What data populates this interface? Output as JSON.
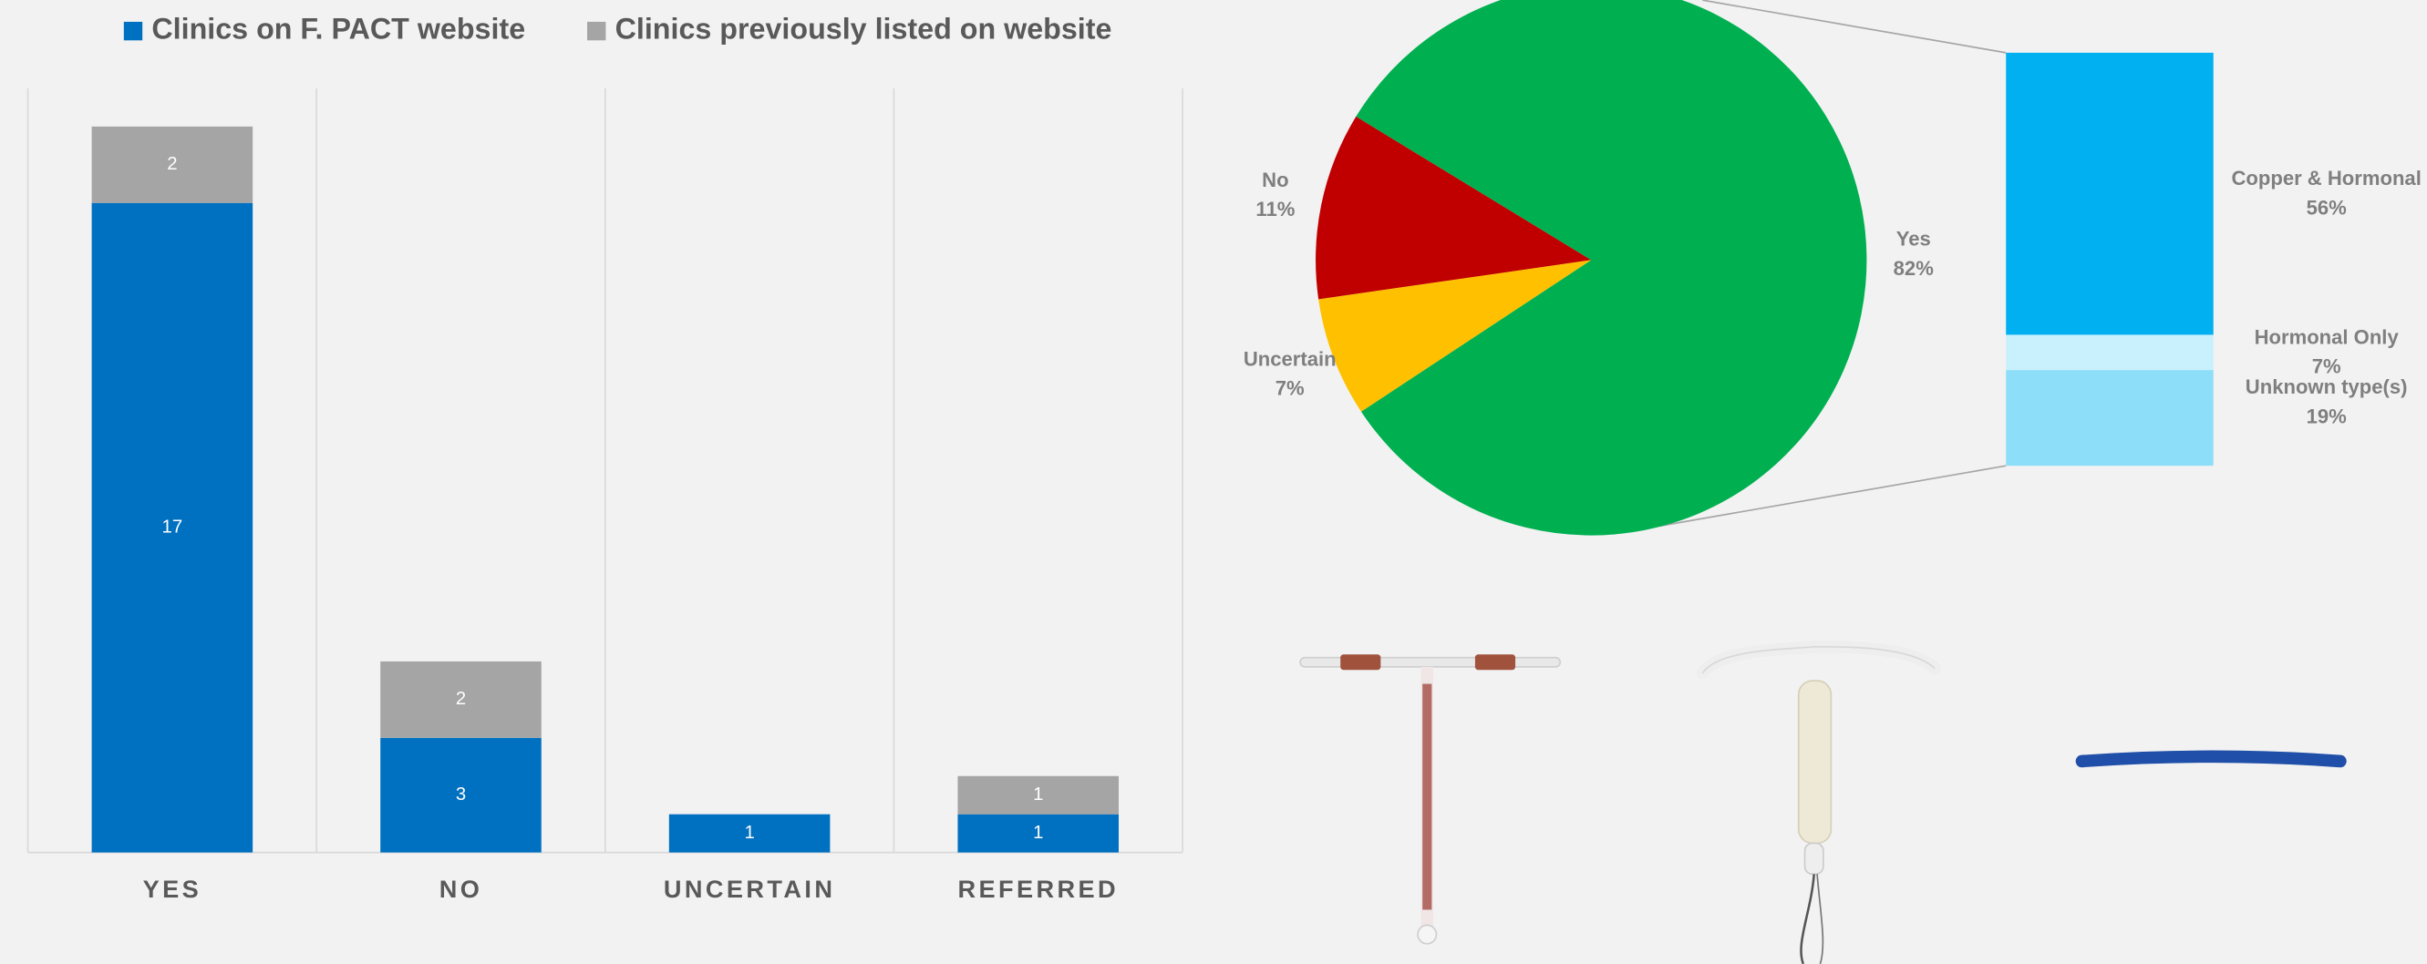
{
  "chart_data": [
    {
      "type": "stacked_bar",
      "categories": [
        "YES",
        "NO",
        "UNCERTAIN",
        "REFERRED"
      ],
      "series": [
        {
          "name": "Clinics on F. PACT website",
          "color": "#0070c0",
          "values": [
            17,
            3,
            1,
            1
          ]
        },
        {
          "name": "Clinics previously listed on website",
          "color": "#a5a5a5",
          "values": [
            2,
            2,
            null,
            1
          ]
        }
      ],
      "ylim": [
        0,
        20
      ]
    },
    {
      "type": "bar_of_pie",
      "categories": [
        "Yes",
        "No",
        "Uncertain"
      ],
      "values": [
        82,
        11,
        7
      ],
      "value_labels": [
        "82%",
        "11%",
        "7%"
      ],
      "colors": [
        "#00b050",
        "#c00000",
        "#ffc000"
      ],
      "breakdown": {
        "categories": [
          "Copper & Hormonal",
          "Hormonal Only",
          "Unknown type(s)"
        ],
        "values": [
          56,
          7,
          19
        ],
        "value_labels": [
          "56%",
          "7%",
          "19%"
        ],
        "colors": [
          "#00b0f0",
          "#c9f0fd",
          "#8ddff9"
        ]
      }
    }
  ]
}
